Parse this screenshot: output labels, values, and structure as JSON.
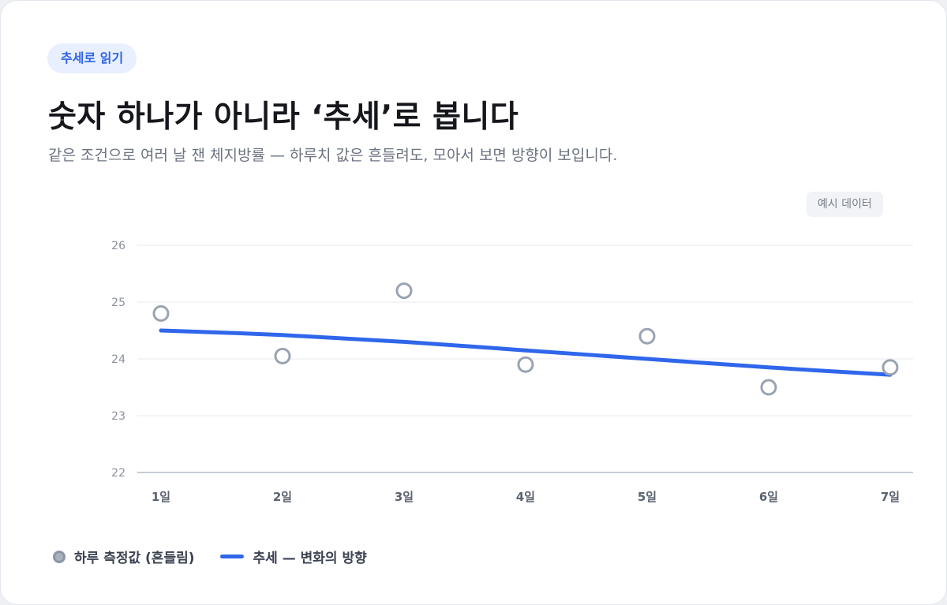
{
  "chip_label": "추세로 읽기",
  "title": "숫자 하나가 아니라 ‘추세’로 봅니다",
  "subtitle": "같은 조건으로 여러 날 잰 체지방률 — 하루치 값은 흔들려도, 모아서 보면 방향이 보입니다.",
  "sample_badge": "예시 데이터",
  "legend": {
    "daily": "하루 측정값 (흔들림)",
    "trend": "추세 — 변화의 방향"
  },
  "colors": {
    "trend": "#2f66eb",
    "points_stroke": "#9aa3b2",
    "grid": "#eceef2",
    "axis": "#c7ccd5",
    "tick_text": "#8a909c",
    "xtick_text": "#5c6270"
  },
  "chart_data": {
    "type": "line",
    "categories": [
      "1일",
      "2일",
      "3일",
      "4일",
      "5일",
      "6일",
      "7일"
    ],
    "series": [
      {
        "name": "하루 측정값 (흔들림)",
        "style": "scatter",
        "values": [
          24.8,
          24.05,
          25.2,
          23.9,
          24.4,
          23.5,
          23.85
        ]
      },
      {
        "name": "추세 — 변화의 방향",
        "style": "line",
        "values": [
          24.5,
          24.42,
          24.3,
          24.15,
          24.0,
          23.85,
          23.72
        ]
      }
    ],
    "ylim": [
      22,
      26
    ],
    "yticks": [
      26,
      25,
      24,
      23,
      22
    ],
    "grid": true,
    "legend_position": "bottom-left",
    "xlabel": "",
    "ylabel": ""
  }
}
